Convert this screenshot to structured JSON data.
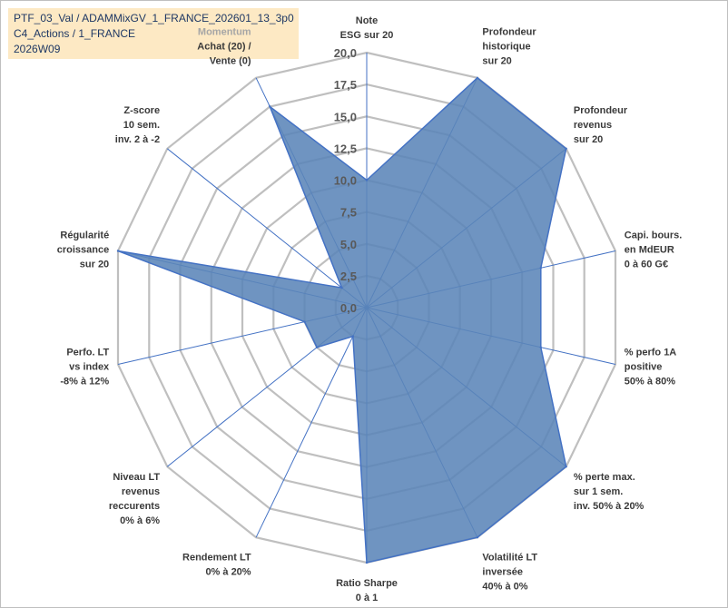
{
  "header": {
    "line1": "PTF_03_Val / ADAMMixGV_1_FRANCE_202601_13_3p0",
    "line2": "C4_Actions / 1_FRANCE",
    "line3": "2026W09"
  },
  "colors": {
    "fill": "#5b85b8",
    "stroke": "#4472c4",
    "grid": "#bfbfbf",
    "spoke": "#4472c4",
    "title_bg": "#fde9c4"
  },
  "chart_data": {
    "type": "radar",
    "rmin": 0,
    "rmax": 20,
    "tick_labels": [
      "0,0",
      "2,5",
      "5,0",
      "7,5",
      "10,0",
      "12,5",
      "15,0",
      "17,5",
      "20,0"
    ],
    "series": [
      {
        "name": "PTF_03_Val",
        "values": [
          10,
          20,
          20,
          14,
          14,
          20,
          20,
          20,
          2.5,
          5,
          5,
          20,
          2.5,
          17.5
        ]
      }
    ],
    "axes": [
      {
        "id": "note-esg",
        "lines": [
          "Note",
          "ESG sur 20"
        ]
      },
      {
        "id": "profondeur-historique",
        "lines": [
          "Profondeur",
          "historique",
          "sur 20"
        ]
      },
      {
        "id": "profondeur-revenus",
        "lines": [
          "Profondeur",
          "revenus",
          "sur 20"
        ]
      },
      {
        "id": "capi-bours",
        "lines": [
          "Capi. bours.",
          "en MdEUR",
          "0 à 60 G€"
        ]
      },
      {
        "id": "perfo-1a",
        "lines": [
          "% perfo 1A",
          "positive",
          "50% à 80%"
        ]
      },
      {
        "id": "perte-max",
        "lines": [
          "% perte max.",
          "sur 1 sem.",
          "inv. 50% à 20%"
        ]
      },
      {
        "id": "volatilite-lt",
        "lines": [
          "Volatilité LT",
          "inversée",
          "40% à 0%"
        ]
      },
      {
        "id": "ratio-sharpe",
        "lines": [
          "Ratio Sharpe",
          "0 à 1"
        ]
      },
      {
        "id": "rendement-lt",
        "lines": [
          "Rendement LT",
          "0% à 20%"
        ]
      },
      {
        "id": "niveau-lt-revenus",
        "lines": [
          "Niveau LT",
          "revenus",
          "reccurents",
          "0% à 6%"
        ]
      },
      {
        "id": "perfo-lt-index",
        "lines": [
          "Perfo. LT",
          "vs index",
          "-8% à 12%"
        ]
      },
      {
        "id": "regularite-croissance",
        "lines": [
          "Régularité",
          "croissance",
          "sur 20"
        ]
      },
      {
        "id": "z-score",
        "lines": [
          "Z-score",
          "10 sem.",
          "inv. 2 à -2"
        ]
      },
      {
        "id": "momentum",
        "lines": [
          "Momentum",
          "Achat (20) /",
          "Vente (0)"
        ],
        "muted_first_line": true
      }
    ]
  }
}
